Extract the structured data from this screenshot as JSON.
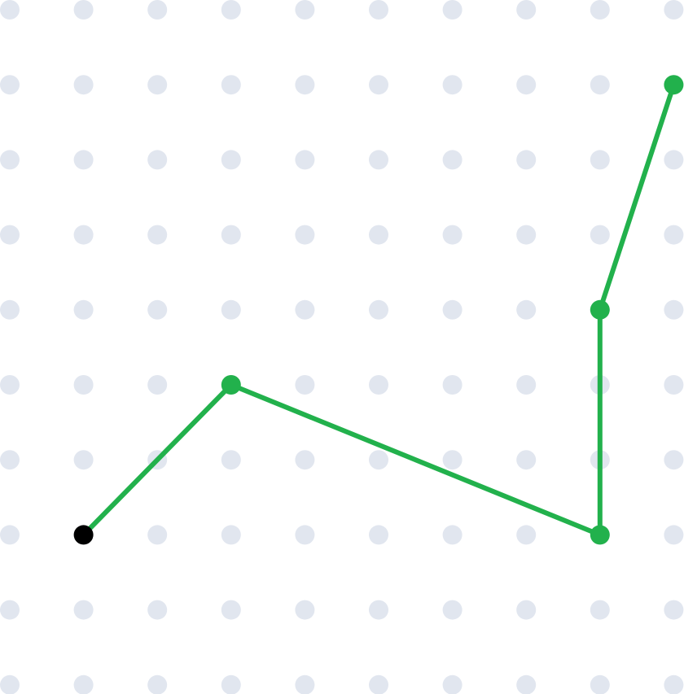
{
  "colors": {
    "background": "#ffffff",
    "grid_dot": "#e1e6ef",
    "path_line": "#22b14c",
    "path_node": "#22b14c",
    "start_node": "#000000"
  },
  "grid": {
    "columns": 10,
    "rows": 10
  },
  "path": {
    "start": {
      "col": 1,
      "row": 7
    },
    "nodes": [
      {
        "col": 1,
        "row": 7
      },
      {
        "col": 3,
        "row": 5
      },
      {
        "col": 8,
        "row": 7
      },
      {
        "col": 8,
        "row": 4
      },
      {
        "col": 9,
        "row": 1
      }
    ]
  }
}
